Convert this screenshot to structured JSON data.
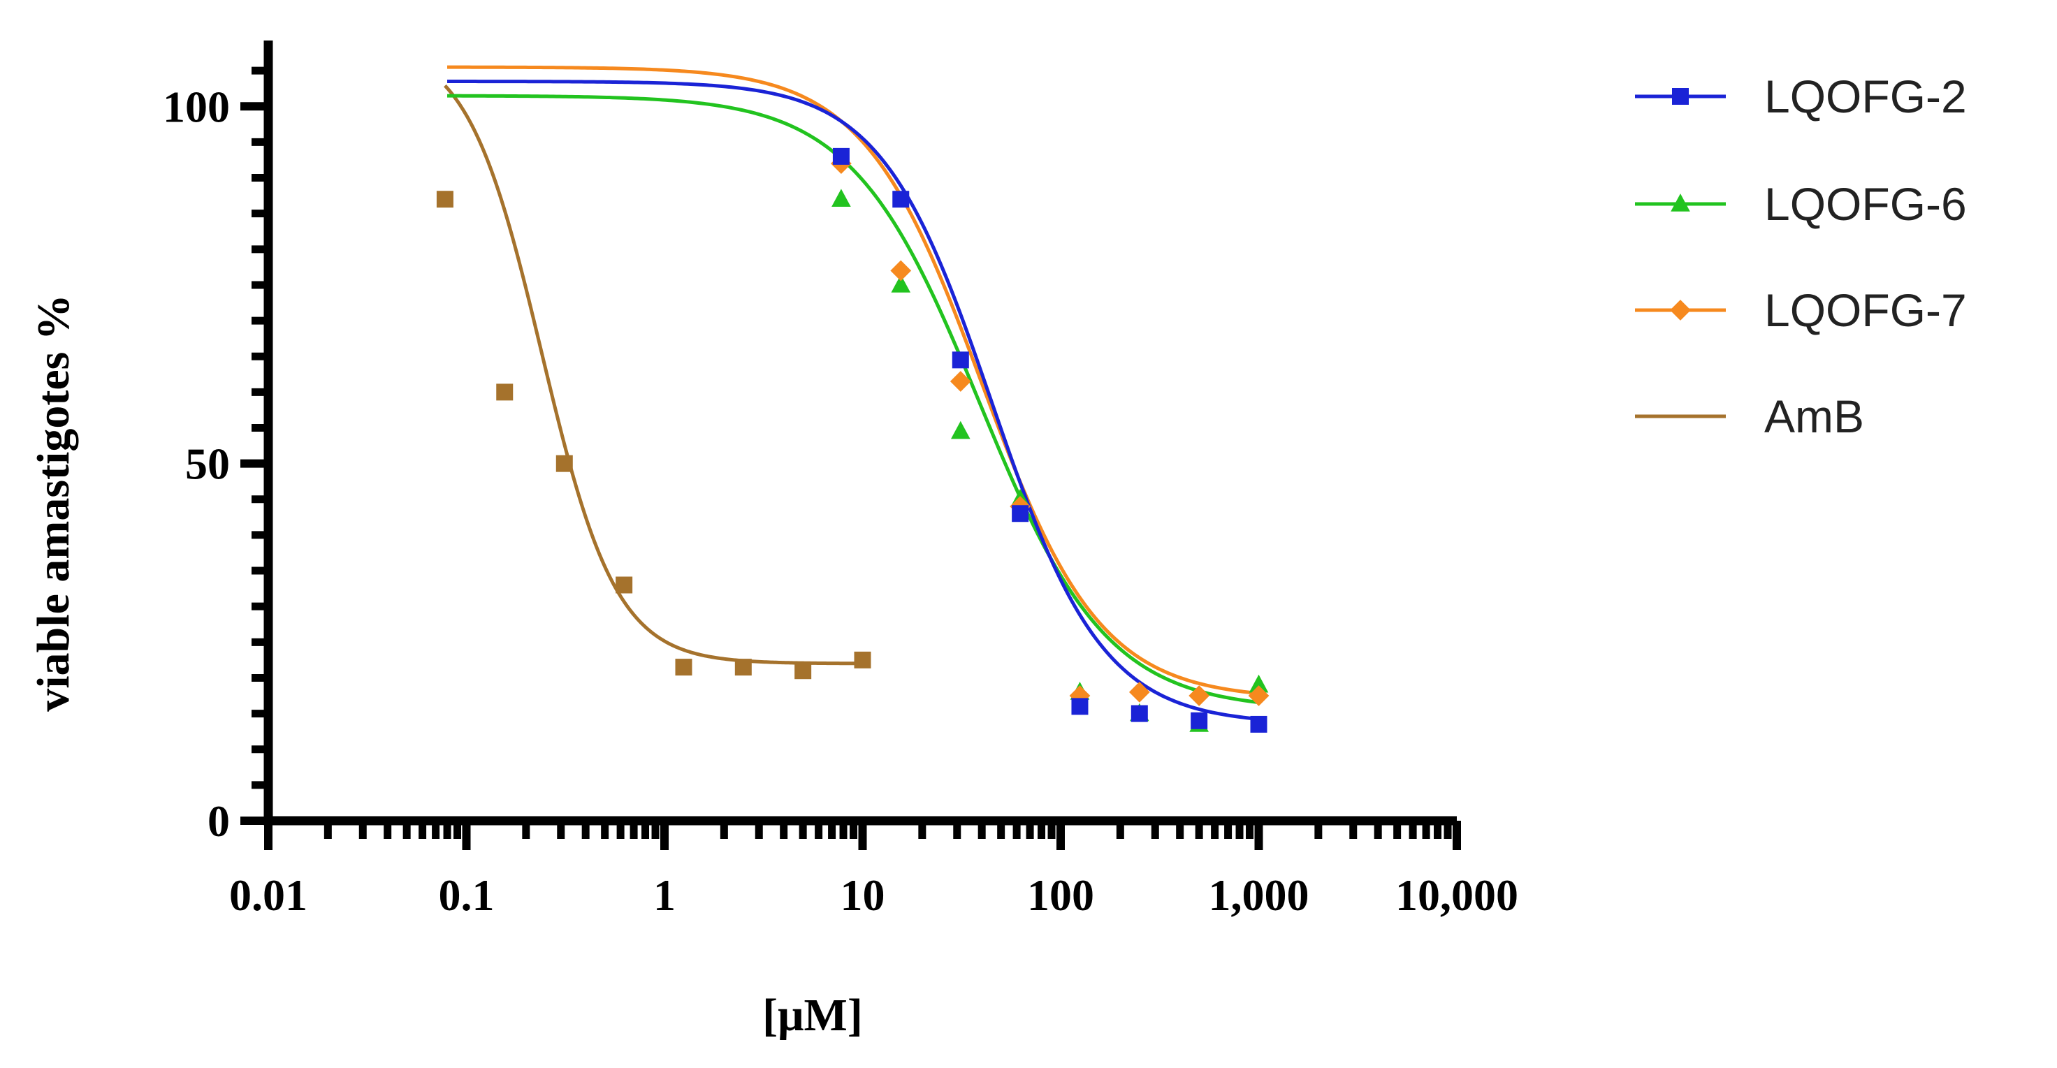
{
  "chart_data": {
    "type": "scatter",
    "title": "",
    "xlabel": "[μM]",
    "ylabel": "viable amastigotes %",
    "xscale": "log",
    "xlim": [
      0.01,
      10000
    ],
    "ylim": [
      0,
      110
    ],
    "x_ticks": [
      0.01,
      0.1,
      1,
      10,
      100,
      1000,
      10000
    ],
    "x_tick_labels": [
      "0.01",
      "0.1",
      "1",
      "10",
      "100",
      "1,000",
      "10,000"
    ],
    "y_ticks": [
      0,
      50,
      100
    ],
    "y_tick_labels": [
      "0",
      "50",
      "100"
    ],
    "legend_position": "right",
    "series": [
      {
        "name": "LQOFG-2",
        "color": "#1a23d6",
        "marker": "square",
        "x": [
          7.8,
          15.6,
          31.25,
          62.5,
          125,
          250,
          500,
          1000
        ],
        "y": [
          93,
          87,
          64.5,
          43,
          16,
          15,
          14,
          13.5
        ],
        "fit": {
          "top": 103.5,
          "bottom": 13.5,
          "ec50": 45,
          "hill": 1.55,
          "x_range": [
            0.08,
            1000
          ]
        }
      },
      {
        "name": "LQOFG-6",
        "color": "#22c31f",
        "marker": "triangle",
        "x": [
          7.8,
          15.6,
          31.25,
          62.5,
          125,
          250,
          500,
          1000
        ],
        "y": [
          87,
          75,
          54.5,
          45,
          18,
          15,
          13.5,
          19
        ],
        "fit": {
          "top": 101.5,
          "bottom": 15.5,
          "ec50": 39,
          "hill": 1.35,
          "x_range": [
            0.08,
            1000
          ]
        }
      },
      {
        "name": "LQOFG-7",
        "color": "#f6891e",
        "marker": "diamond",
        "x": [
          7.8,
          15.6,
          31.25,
          62.5,
          125,
          250,
          500,
          1000
        ],
        "y": [
          92,
          77,
          61.5,
          44,
          17.5,
          18,
          17.5,
          17.5
        ],
        "fit": {
          "top": 105.5,
          "bottom": 17,
          "ec50": 40,
          "hill": 1.45,
          "x_range": [
            0.08,
            1000
          ]
        }
      },
      {
        "name": "AmB",
        "color": "#a5722c",
        "marker": "square",
        "x": [
          0.078,
          0.156,
          0.3125,
          0.625,
          1.25,
          2.5,
          5,
          10
        ],
        "y": [
          87,
          60,
          50,
          33,
          21.5,
          21.5,
          21,
          22.5
        ],
        "fit": {
          "top": 109,
          "bottom": 22,
          "ec50": 0.24,
          "hill": 2.3,
          "x_range": [
            0.078,
            10
          ]
        }
      }
    ]
  }
}
